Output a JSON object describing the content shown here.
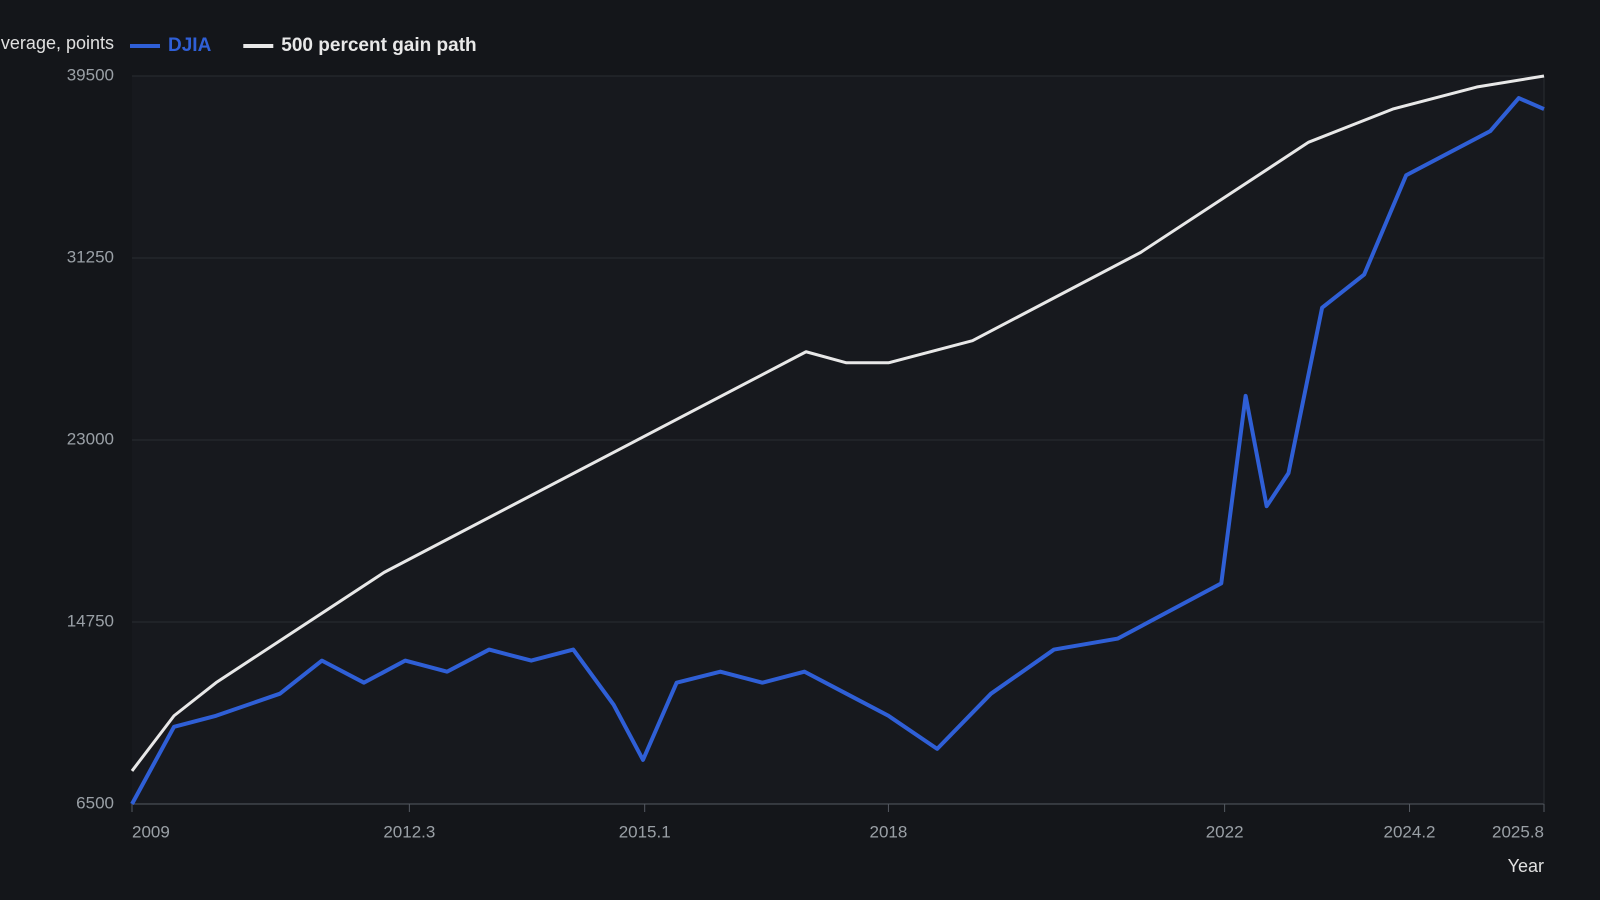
{
  "chart_data": {
    "type": "line",
    "y_label": "verage, points",
    "x_label": "Year",
    "xlim": [
      2009,
      2025.8
    ],
    "xticks": [
      2009,
      2012.3,
      2015.1,
      2018,
      2022,
      2024.2,
      2025.8
    ],
    "ylim": [
      6500,
      39500
    ],
    "yticks": [
      6500,
      14750,
      23000,
      31250,
      39500
    ],
    "grid": true,
    "series": [
      {
        "name": "DJIA",
        "color": "#2f5fd6",
        "x": [
          2009,
          2009.5,
          2010,
          2010.76,
          2011.26,
          2011.76,
          2012.25,
          2012.75,
          2013.25,
          2013.75,
          2014.25,
          2014.73,
          2015.08,
          2015.48,
          2016,
          2016.5,
          2017,
          2017.5,
          2018,
          2018.58,
          2019.22,
          2019.97,
          2020.73,
          2021.96,
          2022.25,
          2022.5,
          2022.76,
          2023.16,
          2023.66,
          2024.16,
          2025.16,
          2025.5,
          2025.8
        ],
        "values": [
          6500,
          10000,
          10500,
          11500,
          13000,
          12000,
          13000,
          12500,
          13500,
          13000,
          13500,
          11000,
          8500,
          12000,
          12500,
          12000,
          12500,
          11500,
          10500,
          9000,
          11500,
          13500,
          14000,
          16500,
          25000,
          20000,
          21500,
          29000,
          30500,
          35000,
          37000,
          38500,
          38000
        ]
      },
      {
        "name": "500 percent gain path",
        "color": "#e8e8e8",
        "x": [
          2009,
          2009.5,
          2010,
          2012,
          2017.02,
          2017.5,
          2018,
          2019,
          2021,
          2023,
          2024,
          2025,
          2025.8
        ],
        "values": [
          8000,
          10500,
          12000,
          17000,
          27000,
          26500,
          26500,
          27500,
          31500,
          36500,
          38000,
          39000,
          39500
        ]
      }
    ]
  }
}
